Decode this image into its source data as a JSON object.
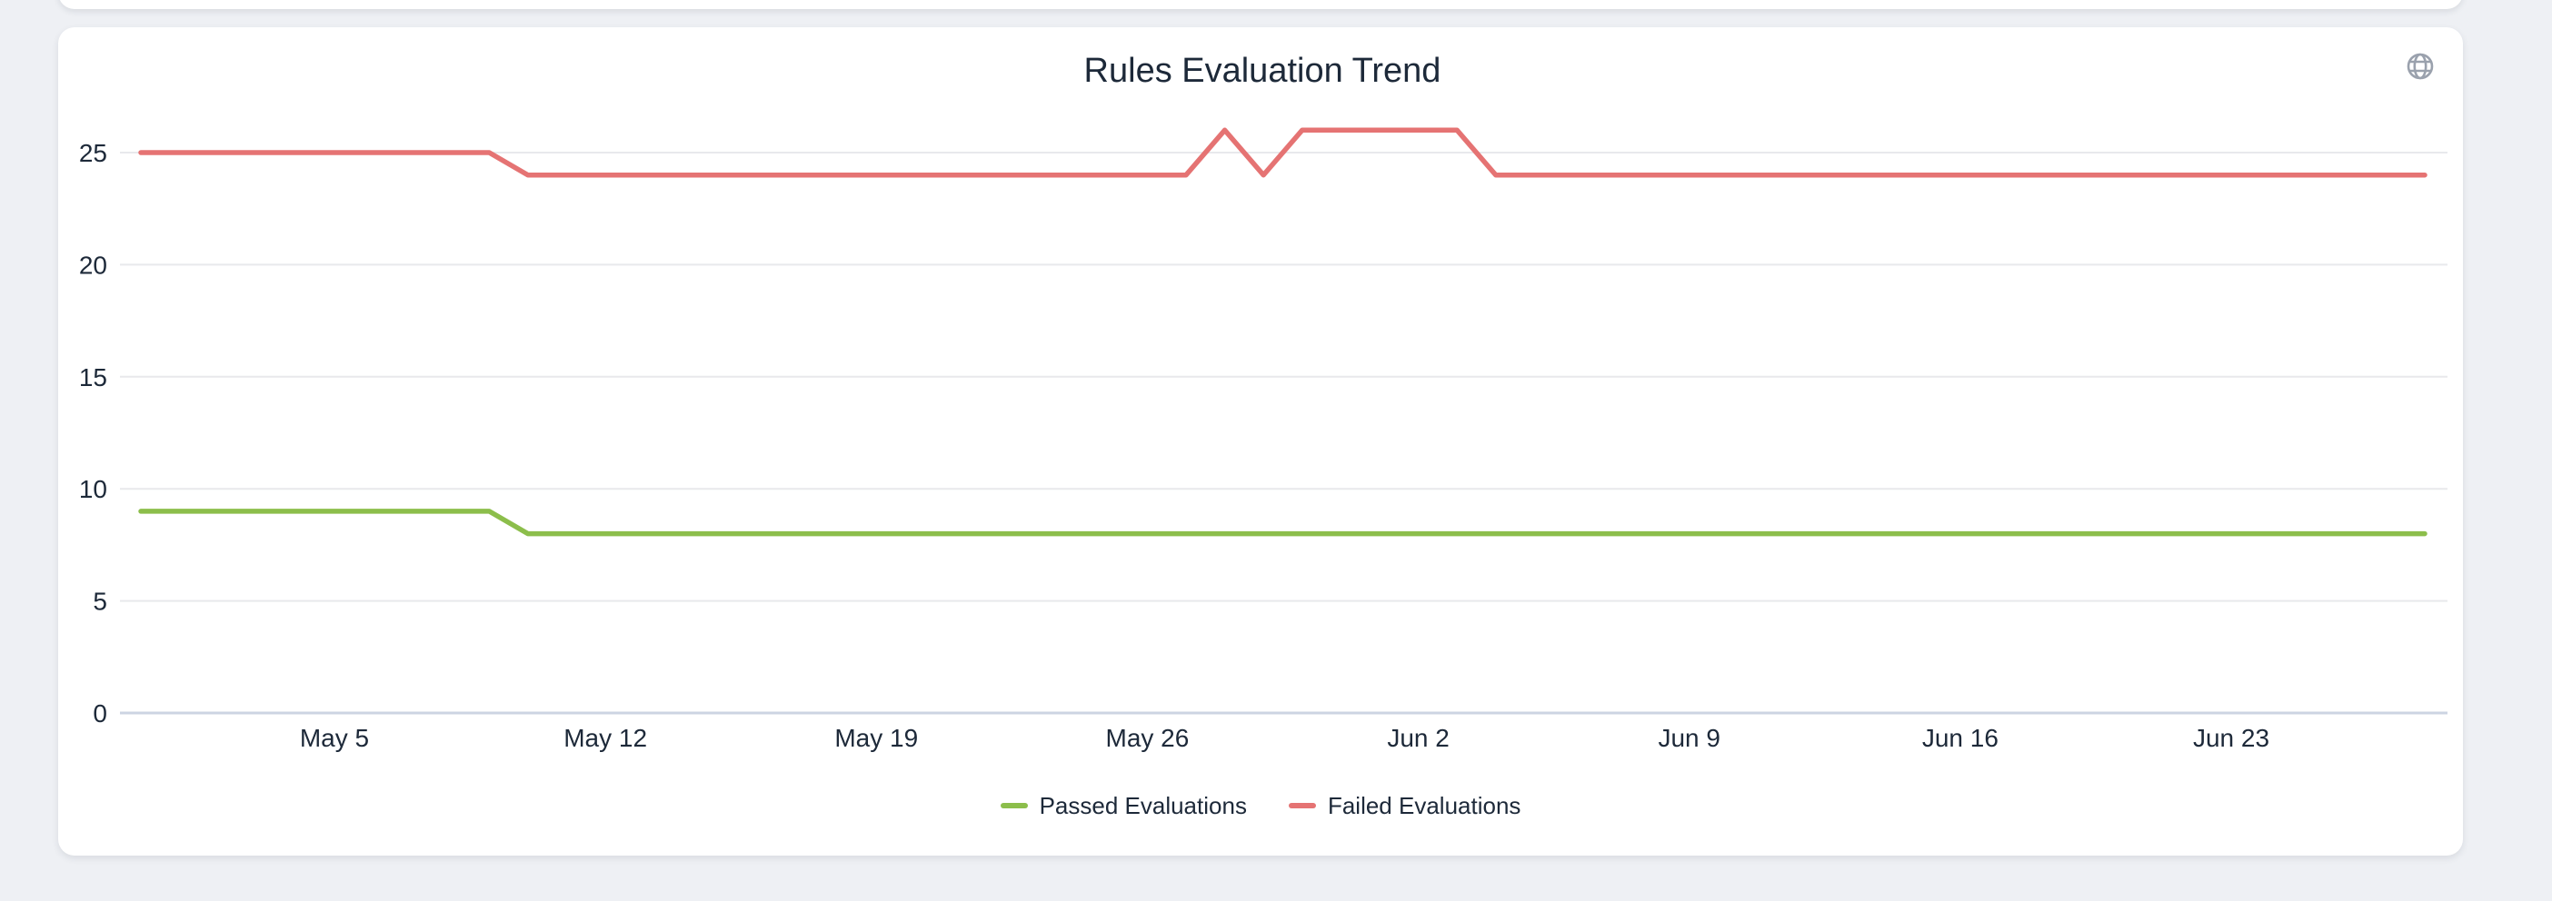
{
  "header": {
    "icon": "globe-icon"
  },
  "colors": {
    "page_background": "#eef0f4",
    "card_background": "#ffffff",
    "text": "#1d2939",
    "grid": "#e8e9ec",
    "axis": "#ccd4e2",
    "globe_icon": "#9aa1ad"
  },
  "chart_data": {
    "type": "line",
    "title": "Rules Evaluation Trend",
    "xlabel": "",
    "ylabel": "",
    "grid": true,
    "legend_position": "bottom",
    "ylim": [
      0,
      27
    ],
    "y_ticks": [
      0,
      5,
      10,
      15,
      20,
      25
    ],
    "x": [
      "Apr 30",
      "May 1",
      "May 2",
      "May 3",
      "May 4",
      "May 5",
      "May 6",
      "May 7",
      "May 8",
      "May 9",
      "May 10",
      "May 11",
      "May 12",
      "May 13",
      "May 14",
      "May 15",
      "May 16",
      "May 17",
      "May 18",
      "May 19",
      "May 20",
      "May 21",
      "May 22",
      "May 23",
      "May 24",
      "May 25",
      "May 26",
      "May 27",
      "May 28",
      "May 29",
      "May 30",
      "May 31",
      "Jun 1",
      "Jun 2",
      "Jun 3",
      "Jun 4",
      "Jun 5",
      "Jun 6",
      "Jun 7",
      "Jun 8",
      "Jun 9",
      "Jun 10",
      "Jun 11",
      "Jun 12",
      "Jun 13",
      "Jun 14",
      "Jun 15",
      "Jun 16",
      "Jun 17",
      "Jun 18",
      "Jun 19",
      "Jun 20",
      "Jun 21",
      "Jun 22",
      "Jun 23",
      "Jun 24",
      "Jun 25",
      "Jun 26",
      "Jun 27",
      "Jun 28"
    ],
    "x_tick_labels": [
      "May 5",
      "May 12",
      "May 19",
      "May 26",
      "Jun 2",
      "Jun 9",
      "Jun 16",
      "Jun 23"
    ],
    "x_tick_indices": [
      5,
      12,
      19,
      26,
      33,
      40,
      47,
      54
    ],
    "series": [
      {
        "name": "Passed Evaluations",
        "color": "#8cbe4b",
        "values": [
          9,
          9,
          9,
          9,
          9,
          9,
          9,
          9,
          9,
          9,
          8,
          8,
          8,
          8,
          8,
          8,
          8,
          8,
          8,
          8,
          8,
          8,
          8,
          8,
          8,
          8,
          8,
          8,
          8,
          8,
          8,
          8,
          8,
          8,
          8,
          8,
          8,
          8,
          8,
          8,
          8,
          8,
          8,
          8,
          8,
          8,
          8,
          8,
          8,
          8,
          8,
          8,
          8,
          8,
          8,
          8,
          8,
          8,
          8,
          8
        ]
      },
      {
        "name": "Failed Evaluations",
        "color": "#e57373",
        "values": [
          25,
          25,
          25,
          25,
          25,
          25,
          25,
          25,
          25,
          25,
          24,
          24,
          24,
          24,
          24,
          24,
          24,
          24,
          24,
          24,
          24,
          24,
          24,
          24,
          24,
          24,
          24,
          24,
          26,
          24,
          26,
          26,
          26,
          26,
          26,
          24,
          24,
          24,
          24,
          24,
          24,
          24,
          24,
          24,
          24,
          24,
          24,
          24,
          24,
          24,
          24,
          24,
          24,
          24,
          24,
          24,
          24,
          24,
          24,
          24
        ]
      }
    ]
  }
}
